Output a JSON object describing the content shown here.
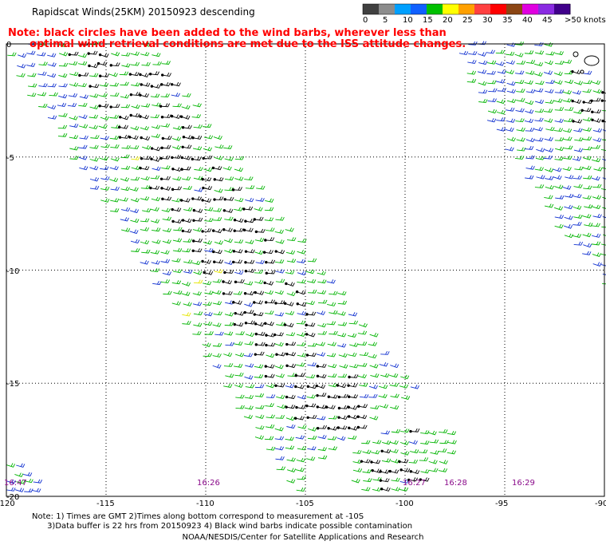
{
  "title": "Rapidscat Winds(25KM) 20150923 descending",
  "note_line1": "Note: black circles have been added to the wind barbs, wherever less than",
  "note_line2": "      optimal wind retrieval conditions are met due to the ISS attitude changes.",
  "colorbar": {
    "labels": [
      "0",
      "5",
      "10",
      "15",
      "20",
      "25",
      "30",
      "35",
      "40",
      "45",
      ">50 knots"
    ],
    "colors": [
      "#404040",
      "#8c8c8c",
      "#00a0ff",
      "#1060ff",
      "#00c000",
      "#ffff00",
      "#ffa000",
      "#ff4040",
      "#ff0000",
      "#8b4513",
      "#e000e0",
      "#8a2be2",
      "#40008a"
    ]
  },
  "x_axis": {
    "ticks": [
      "-120",
      "-115",
      "-110",
      "-105",
      "-100",
      "-95",
      "-90"
    ]
  },
  "y_axis": {
    "ticks": [
      "0",
      "-5",
      "-10",
      "-15",
      "-20"
    ]
  },
  "time_labels": [
    "16:47",
    "16:26",
    "16:27",
    "16:28",
    "16:29"
  ],
  "footnote_line1": "Note: 1) Times are GMT 2)Times along bottom correspond to measurement at -10S",
  "footnote_line2": "      3)Data buffer is 22 hrs from 20150923 4) Black wind barbs indicate possible contamination",
  "credit": "NOAA/NESDIS/Center for Satellite Applications and Research"
}
